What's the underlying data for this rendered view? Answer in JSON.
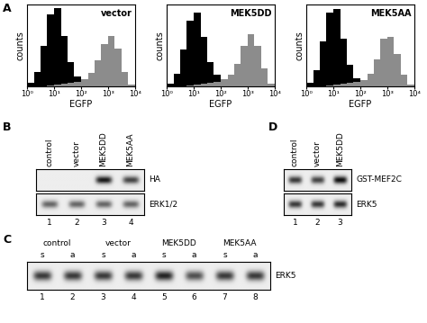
{
  "panel_labels": [
    "A",
    "B",
    "C",
    "D"
  ],
  "chart_data": [
    {
      "type": "histogram",
      "title": "vector",
      "x_label": "EGFP",
      "y_label": "counts",
      "log": "x",
      "xlim": [
        1,
        10000
      ],
      "xticks": [
        {
          "value": 1,
          "label": "10⁰"
        },
        {
          "value": 10,
          "label": "10¹"
        },
        {
          "value": 100,
          "label": "10²"
        },
        {
          "value": 1000,
          "label": "10³"
        },
        {
          "value": 10000,
          "label": "10⁴"
        }
      ],
      "ylim": [
        0,
        100
      ],
      "tick_labels": "x",
      "bins": [
        1,
        1.78,
        3.16,
        5.62,
        10,
        17.8,
        31.6,
        56.2,
        100,
        178,
        316,
        562,
        1000,
        1778,
        3162,
        5623,
        10000
      ],
      "series": [
        {
          "color": "#000000",
          "values": [
            4,
            18,
            50,
            88,
            96,
            62,
            30,
            12,
            5,
            3,
            2,
            2,
            2,
            1,
            1,
            0
          ]
        },
        {
          "color": "#8c8c8c",
          "values": [
            0,
            0,
            0,
            1,
            2,
            3,
            4,
            6,
            9,
            16,
            32,
            52,
            62,
            46,
            18,
            2
          ]
        }
      ]
    },
    {
      "type": "histogram",
      "title": "MEK5DD",
      "x_label": "EGFP",
      "y_label": "counts",
      "log": "x",
      "xlim": [
        1,
        10000
      ],
      "xticks": [
        {
          "value": 1,
          "label": "10⁰"
        },
        {
          "value": 10,
          "label": "10¹"
        },
        {
          "value": 100,
          "label": "10²"
        },
        {
          "value": 1000,
          "label": "10³"
        },
        {
          "value": 10000,
          "label": "10⁴"
        }
      ],
      "ylim": [
        0,
        100
      ],
      "tick_labels": "x",
      "bins": [
        1,
        1.78,
        3.16,
        5.62,
        10,
        17.8,
        31.6,
        56.2,
        100,
        178,
        316,
        562,
        1000,
        1778,
        3162,
        5623,
        10000
      ],
      "series": [
        {
          "color": "#000000",
          "values": [
            3,
            15,
            45,
            80,
            90,
            60,
            30,
            14,
            6,
            3,
            2,
            2,
            2,
            1,
            1,
            0
          ]
        },
        {
          "color": "#8c8c8c",
          "values": [
            0,
            0,
            0,
            1,
            2,
            3,
            4,
            6,
            9,
            14,
            28,
            50,
            64,
            50,
            22,
            3
          ]
        }
      ]
    },
    {
      "type": "histogram",
      "title": "MEK5AA",
      "x_label": "EGFP",
      "y_label": "counts",
      "log": "x",
      "xlim": [
        1,
        10000
      ],
      "xticks": [
        {
          "value": 1,
          "label": "10⁰"
        },
        {
          "value": 10,
          "label": "10¹"
        },
        {
          "value": 100,
          "label": "10²"
        },
        {
          "value": 1000,
          "label": "10³"
        },
        {
          "value": 10000,
          "label": "10⁴"
        }
      ],
      "ylim": [
        0,
        100
      ],
      "tick_labels": "x",
      "bins": [
        1,
        1.78,
        3.16,
        5.62,
        10,
        17.8,
        31.6,
        56.2,
        100,
        178,
        316,
        562,
        1000,
        1778,
        3162,
        5623,
        10000
      ],
      "series": [
        {
          "color": "#000000",
          "values": [
            4,
            20,
            55,
            90,
            95,
            58,
            26,
            10,
            5,
            3,
            2,
            2,
            1,
            1,
            1,
            0
          ]
        },
        {
          "color": "#8c8c8c",
          "values": [
            0,
            0,
            0,
            1,
            2,
            3,
            4,
            5,
            8,
            15,
            33,
            58,
            60,
            40,
            14,
            2
          ]
        }
      ]
    }
  ],
  "blots": {
    "B": {
      "lanes": [
        "control",
        "vector",
        "MEK5DD",
        "MEK5AA"
      ],
      "lane_numbers": [
        1,
        2,
        3,
        4
      ],
      "rows": [
        {
          "label": "HA",
          "intensity": [
            0,
            0,
            0.95,
            0.75
          ]
        },
        {
          "label": "ERK1/2",
          "intensity": [
            0.6,
            0.6,
            0.6,
            0.6
          ]
        }
      ]
    },
    "C": {
      "groups": [
        "control",
        "vector",
        "MEK5DD",
        "MEK5AA"
      ],
      "lanes": [
        "s",
        "a",
        "s",
        "a",
        "s",
        "a",
        "s",
        "a"
      ],
      "lane_numbers": [
        1,
        2,
        3,
        4,
        5,
        6,
        7,
        8
      ],
      "rows": [
        {
          "label": "ERK5",
          "intensity": [
            0.8,
            0.8,
            0.8,
            0.8,
            0.9,
            0.7,
            0.8,
            0.8
          ]
        }
      ]
    },
    "D": {
      "lanes": [
        "control",
        "vector",
        "MEK5DD"
      ],
      "lane_numbers": [
        1,
        2,
        3
      ],
      "rows": [
        {
          "label": "GST-MEF2C",
          "intensity": [
            0.8,
            0.75,
            1.0
          ]
        },
        {
          "label": "ERK5",
          "intensity": [
            0.8,
            0.8,
            0.85
          ]
        }
      ]
    }
  }
}
